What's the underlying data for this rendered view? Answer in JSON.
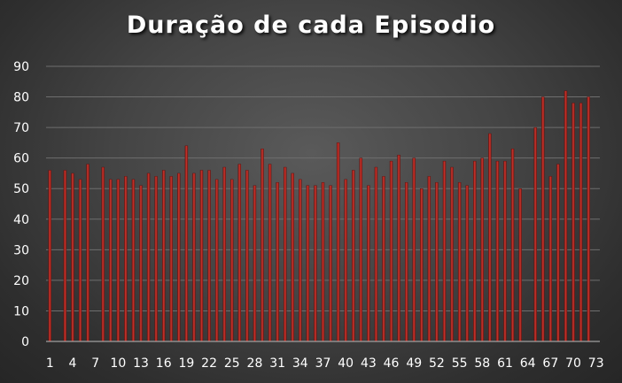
{
  "chart_data": {
    "type": "bar",
    "title": "Duração de cada Episodio",
    "xlabel": "",
    "ylabel": "",
    "ylim": [
      0,
      90
    ],
    "yticks": [
      0,
      10,
      20,
      30,
      40,
      50,
      60,
      70,
      80,
      90
    ],
    "xtick_labels": [
      "1",
      "4",
      "7",
      "10",
      "13",
      "16",
      "19",
      "22",
      "25",
      "28",
      "31",
      "34",
      "37",
      "40",
      "43",
      "46",
      "49",
      "52",
      "55",
      "58",
      "61",
      "64",
      "67",
      "70",
      "73"
    ],
    "categories": [
      1,
      2,
      3,
      4,
      5,
      6,
      7,
      8,
      9,
      10,
      11,
      12,
      13,
      14,
      15,
      16,
      17,
      18,
      19,
      20,
      21,
      22,
      23,
      24,
      25,
      26,
      27,
      28,
      29,
      30,
      31,
      32,
      33,
      34,
      35,
      36,
      37,
      38,
      39,
      40,
      41,
      42,
      43,
      44,
      45,
      46,
      47,
      48,
      49,
      50,
      51,
      52,
      53,
      54,
      55,
      56,
      57,
      58,
      59,
      60,
      61,
      62,
      63,
      64,
      65,
      66,
      67,
      68,
      69,
      70,
      71,
      72,
      73
    ],
    "values": [
      56,
      0,
      56,
      55,
      53,
      58,
      0,
      57,
      53,
      53,
      54,
      53,
      51,
      55,
      54,
      56,
      54,
      55,
      64,
      55,
      56,
      56,
      53,
      57,
      53,
      58,
      56,
      51,
      63,
      58,
      52,
      57,
      55,
      53,
      51,
      51,
      52,
      51,
      65,
      53,
      56,
      60,
      51,
      57,
      54,
      59,
      61,
      52,
      60,
      50,
      54,
      52,
      59,
      57,
      52,
      51,
      59,
      60,
      68,
      59,
      59,
      63,
      50,
      0,
      70,
      80,
      54,
      58,
      82,
      78,
      78,
      80,
      0
    ],
    "grid": true,
    "legend": "none",
    "bar_color": "#b8302a"
  }
}
